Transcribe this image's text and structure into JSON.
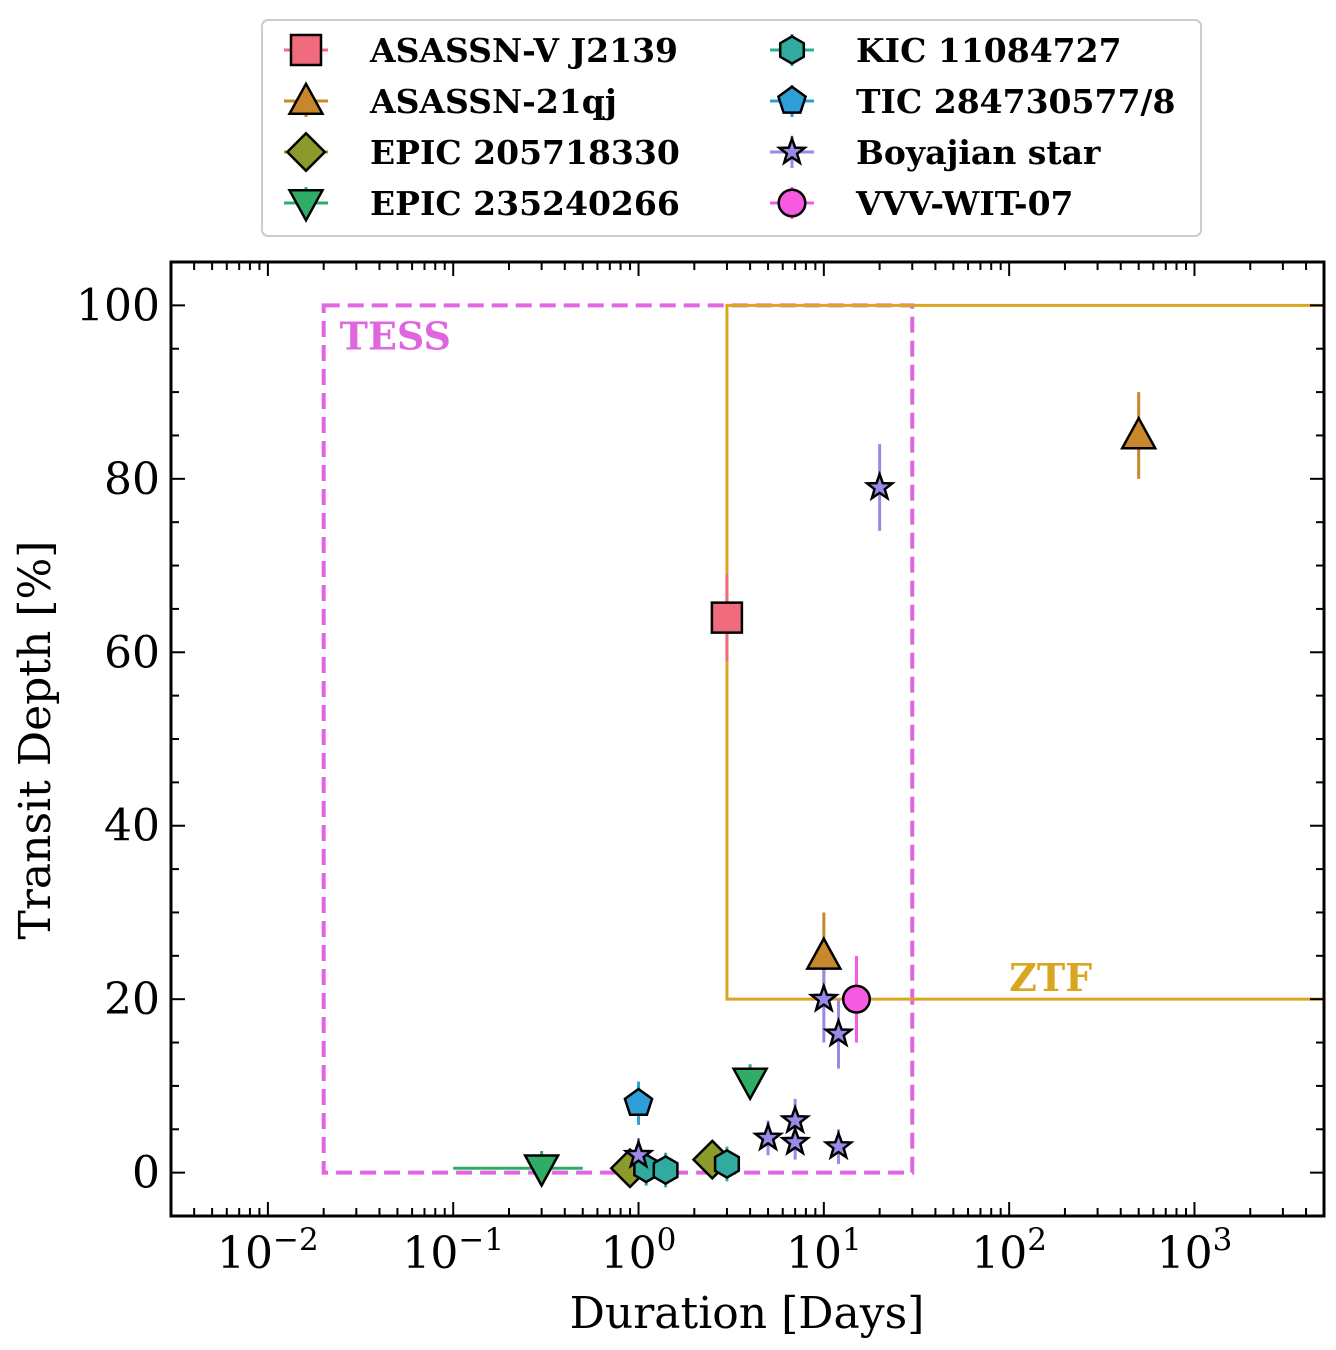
{
  "chart_data": {
    "type": "scatter",
    "xlabel": "Duration [Days]",
    "ylabel": "Transit Depth [%]",
    "xscale": "log",
    "xlim": [
      0.003,
      5000
    ],
    "ylim": [
      -5,
      105
    ],
    "x_ticks": [
      {
        "value": 0.01,
        "base": "10",
        "exp": "−2"
      },
      {
        "value": 0.1,
        "base": "10",
        "exp": "−1"
      },
      {
        "value": 1,
        "base": "10",
        "exp": "0"
      },
      {
        "value": 10,
        "base": "10",
        "exp": "1"
      },
      {
        "value": 100,
        "base": "10",
        "exp": "2"
      },
      {
        "value": 1000,
        "base": "10",
        "exp": "3"
      }
    ],
    "y_ticks": [
      "0",
      "20",
      "40",
      "60",
      "80",
      "100"
    ],
    "regions": [
      {
        "name": "TESS",
        "style": "dashed",
        "color": "#e066e0",
        "x_range": [
          0.02,
          30
        ],
        "y_range": [
          0,
          100
        ]
      },
      {
        "name": "ZTF",
        "style": "solid",
        "color": "#daa520",
        "x_range": [
          3,
          5000
        ],
        "y_range": [
          20,
          100
        ]
      }
    ],
    "legend": {
      "position": "top-center",
      "columns": 2
    },
    "series": [
      {
        "name": "ASASSN-V J2139",
        "marker": "square",
        "color": "#f06b7d",
        "points": [
          {
            "x": 3,
            "y": 64,
            "yerr": 5
          }
        ]
      },
      {
        "name": "ASASSN-21qj",
        "marker": "triangle-up",
        "color": "#c8872d",
        "points": [
          {
            "x": 10,
            "y": 25,
            "yerr": 5
          },
          {
            "x": 500,
            "y": 85,
            "yerr": 5
          }
        ]
      },
      {
        "name": "EPIC 205718330",
        "marker": "diamond",
        "color": "#8c9a2c",
        "points": [
          {
            "x": 0.9,
            "y": 0.5,
            "yerr": 0
          },
          {
            "x": 2.5,
            "y": 1.5,
            "yerr": 0
          }
        ]
      },
      {
        "name": "EPIC 235240266",
        "marker": "triangle-down",
        "color": "#2fad67",
        "points": [
          {
            "x": 0.3,
            "y": 0.5,
            "yerr": 2,
            "xerr_range": [
              0.1,
              0.5
            ]
          },
          {
            "x": 4,
            "y": 10.5,
            "yerr": 2
          }
        ]
      },
      {
        "name": "KIC 11084727",
        "marker": "hexagon",
        "color": "#31aba0",
        "points": [
          {
            "x": 1.1,
            "y": 0.5,
            "yerr": 2
          },
          {
            "x": 1.4,
            "y": 0.3,
            "yerr": 2
          },
          {
            "x": 3,
            "y": 1,
            "yerr": 2
          }
        ]
      },
      {
        "name": "TIC 284730577/8",
        "marker": "pentagon",
        "color": "#2e9fd6",
        "points": [
          {
            "x": 1,
            "y": 8,
            "yerr": 2.5
          }
        ]
      },
      {
        "name": "Boyajian star",
        "marker": "star",
        "color": "#9b89e8",
        "points": [
          {
            "x": 1,
            "y": 2,
            "yerr": 2
          },
          {
            "x": 5,
            "y": 4,
            "yerr": 2
          },
          {
            "x": 7,
            "y": 6,
            "yerr": 2.5
          },
          {
            "x": 7,
            "y": 3.5,
            "yerr": 2
          },
          {
            "x": 10,
            "y": 20,
            "yerr": 5
          },
          {
            "x": 12,
            "y": 16,
            "yerr": 4
          },
          {
            "x": 12,
            "y": 3,
            "yerr": 2
          },
          {
            "x": 20,
            "y": 79,
            "yerr": 5
          }
        ]
      },
      {
        "name": "VVV-WIT-07",
        "marker": "circle",
        "color": "#f55ae0",
        "points": [
          {
            "x": 15,
            "y": 20,
            "yerr": 5
          }
        ]
      }
    ]
  }
}
